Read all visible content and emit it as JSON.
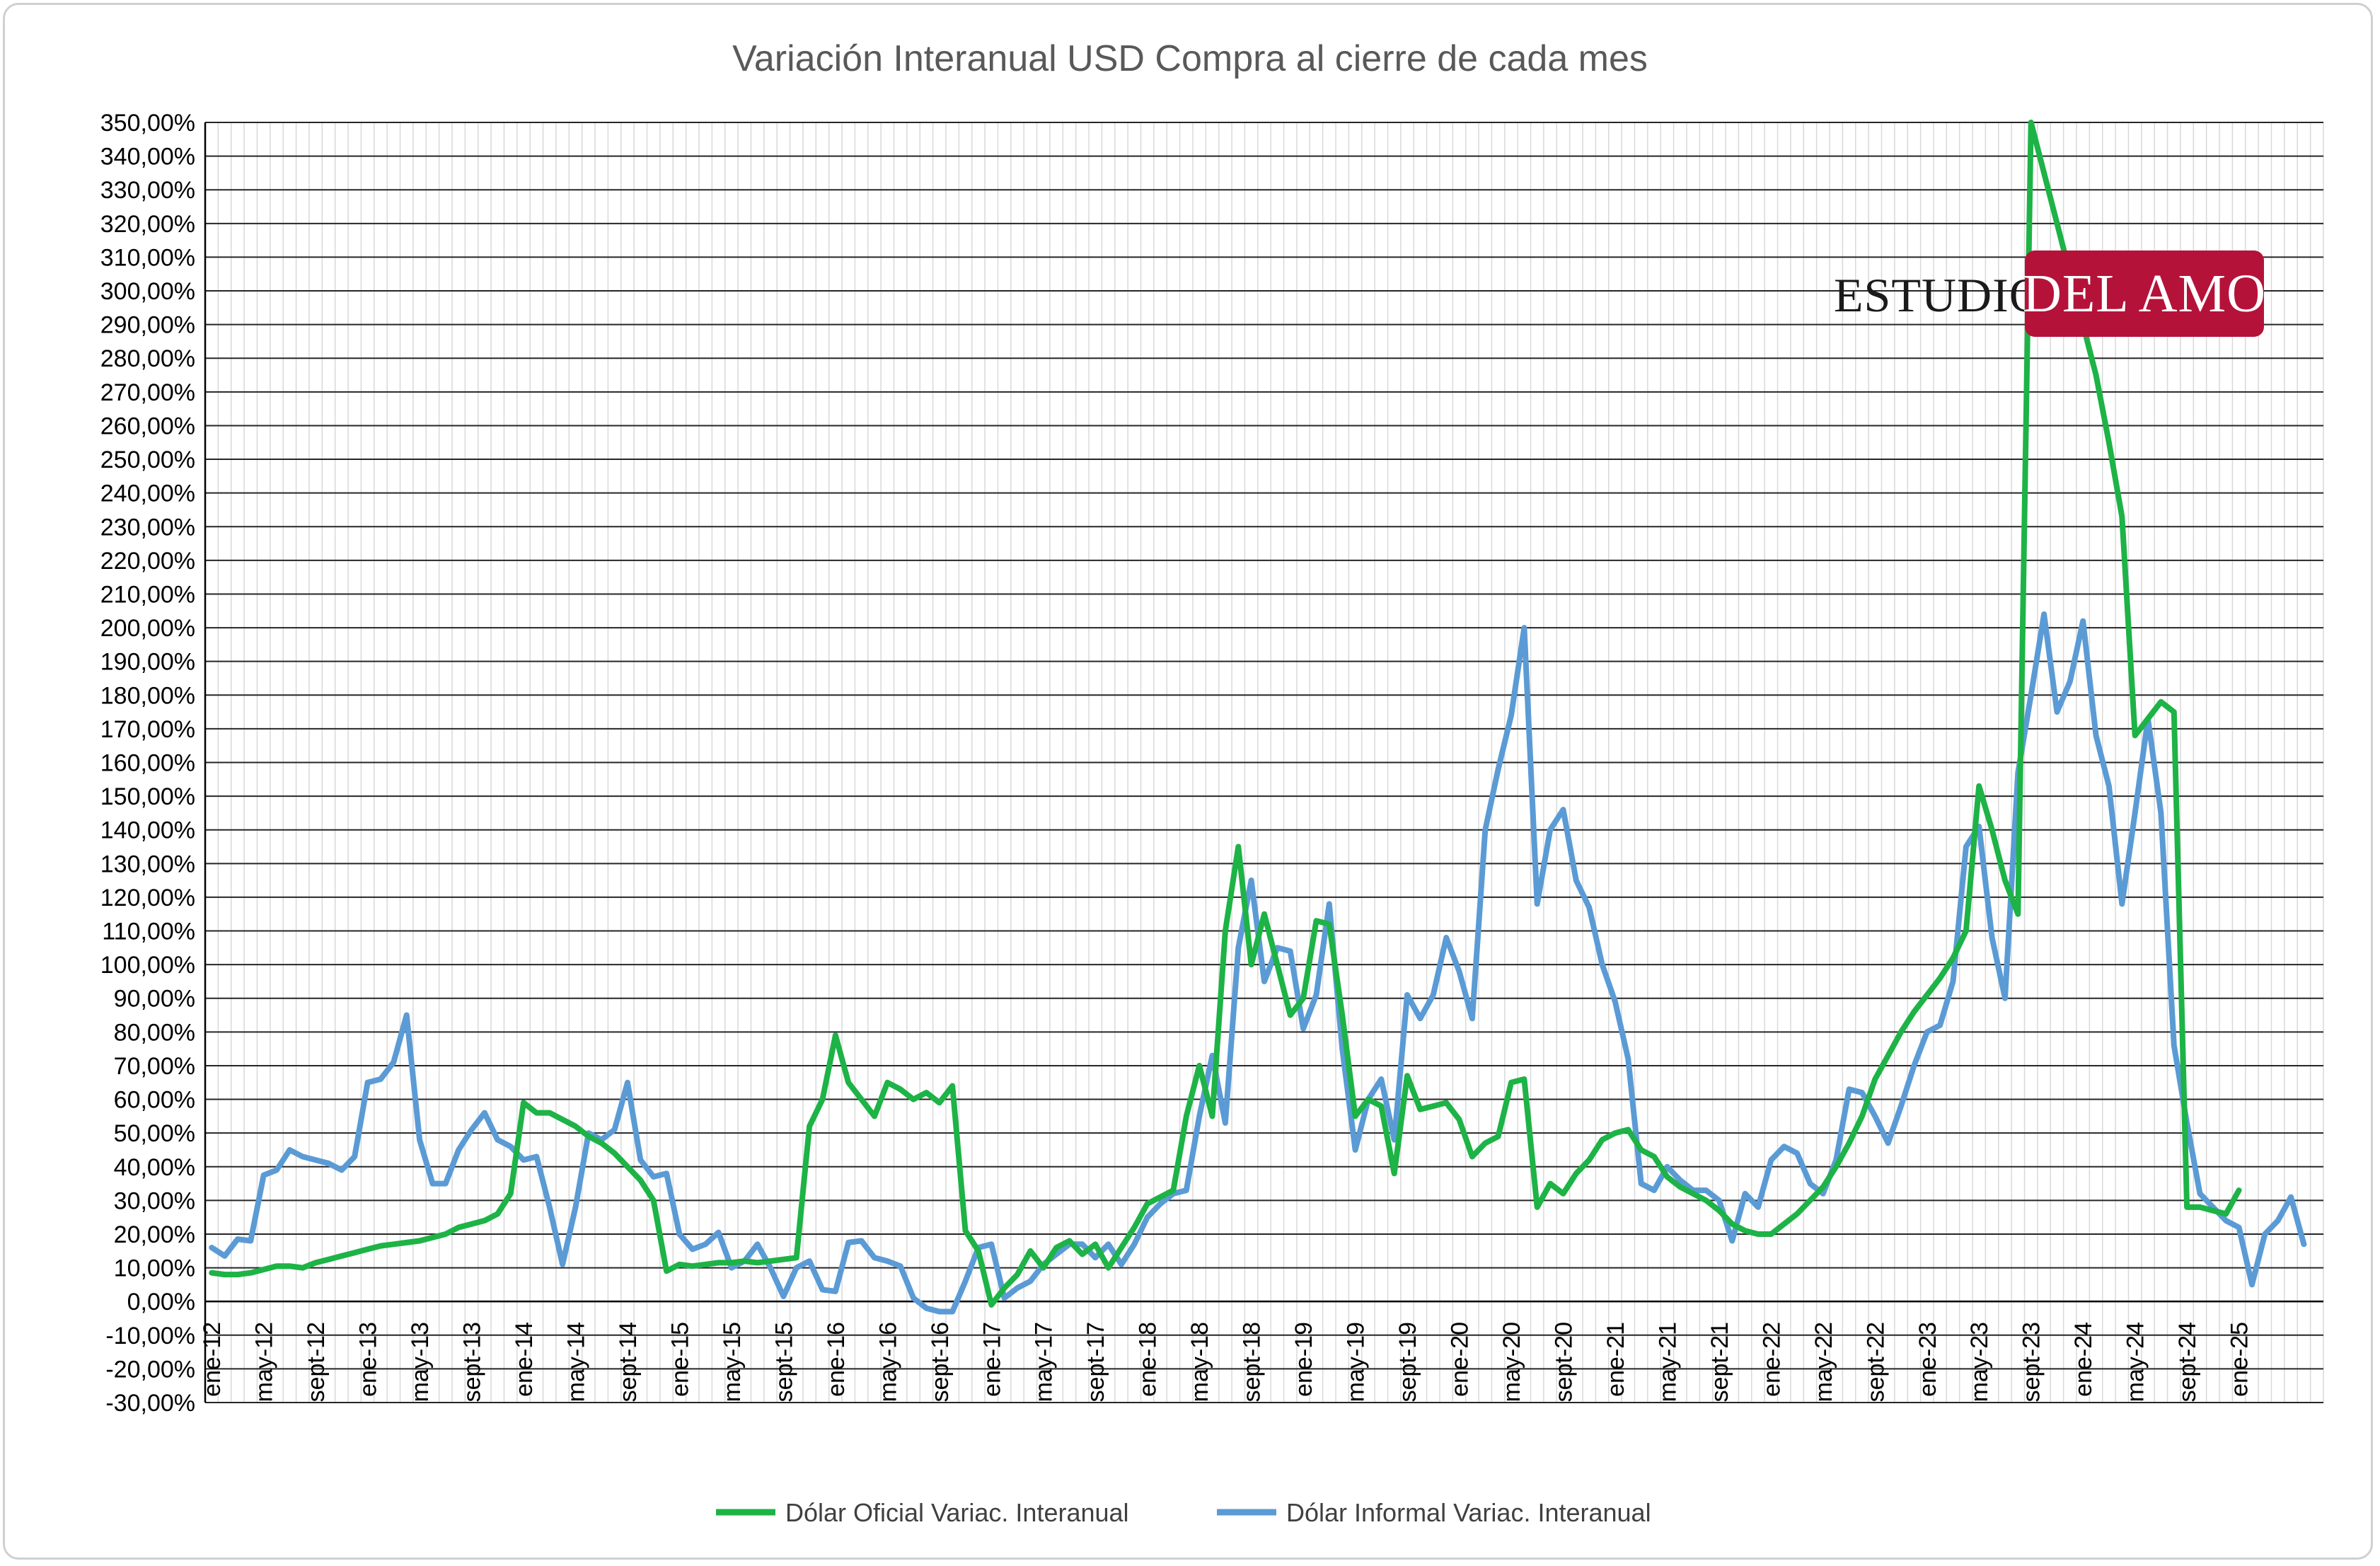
{
  "chart_data": {
    "type": "line",
    "title": "Variación Interanual USD Compra al cierre de cada mes",
    "xlabel": "",
    "ylabel": "",
    "ylim": [
      -30,
      350
    ],
    "ytick_step": 10,
    "yticks": [
      "350,00%",
      "340,00%",
      "330,00%",
      "320,00%",
      "310,00%",
      "300,00%",
      "290,00%",
      "280,00%",
      "270,00%",
      "260,00%",
      "250,00%",
      "240,00%",
      "230,00%",
      "220,00%",
      "210,00%",
      "200,00%",
      "190,00%",
      "180,00%",
      "170,00%",
      "160,00%",
      "150,00%",
      "140,00%",
      "130,00%",
      "120,00%",
      "110,00%",
      "100,00%",
      "90,00%",
      "80,00%",
      "70,00%",
      "60,00%",
      "50,00%",
      "40,00%",
      "30,00%",
      "20,00%",
      "10,00%",
      "0,00%",
      "-10,00%",
      "-20,00%",
      "-30,00%"
    ],
    "x_start": "ene-12",
    "n_months": 163,
    "xtick_every": 4,
    "xticks": [
      "ene-12",
      "may-12",
      "sept-12",
      "ene-13",
      "may-13",
      "sept-13",
      "ene-14",
      "may-14",
      "sept-14",
      "ene-15",
      "may-15",
      "sept-15",
      "ene-16",
      "may-16",
      "sept-16",
      "ene-17",
      "may-17",
      "sept-17",
      "ene-18",
      "may-18",
      "sept-18",
      "ene-19",
      "may-19",
      "sept-19",
      "ene-20",
      "may-20",
      "sept-20",
      "ene-21",
      "may-21",
      "sept-21",
      "ene-22",
      "may-22",
      "sept-22",
      "ene-23",
      "may-23",
      "sept-23",
      "ene-24",
      "may-24",
      "sept-24",
      "ene-25"
    ],
    "grid": true,
    "legend_position": "bottom-center",
    "series": [
      {
        "name": "Dólar Oficial Variac. Interanual",
        "color": "#1db346",
        "values": [
          8.5,
          8,
          8,
          8.5,
          9.5,
          10.5,
          10.5,
          10,
          11.5,
          12.5,
          13.5,
          14.5,
          15.5,
          16.5,
          17,
          17.5,
          18,
          19,
          20,
          22,
          23,
          24,
          26,
          32,
          59,
          56,
          56,
          54,
          52,
          49,
          47,
          44,
          40,
          36,
          30,
          9,
          11,
          10.5,
          11,
          11.5,
          11.5,
          12,
          11.5,
          12,
          12.5,
          13,
          52,
          60,
          79,
          65,
          60,
          55,
          65,
          63,
          60,
          62,
          59,
          64,
          21,
          15,
          -1,
          4,
          8,
          15,
          10,
          16,
          18,
          14,
          17,
          10,
          16,
          22,
          29,
          31,
          33,
          55,
          70,
          55,
          110,
          135,
          100,
          115,
          100,
          85,
          90,
          113,
          112,
          85,
          55,
          60,
          58,
          38,
          67,
          57,
          58,
          59,
          54,
          43,
          47,
          49,
          65,
          66,
          28,
          35,
          32,
          38,
          42,
          48,
          50,
          51,
          45,
          43,
          37,
          34,
          32,
          30,
          27,
          23,
          21,
          20,
          20,
          23,
          26,
          30,
          34,
          40,
          47,
          55,
          66,
          73,
          80,
          86,
          91,
          96,
          102,
          110,
          153,
          140,
          125,
          115,
          350,
          335,
          320,
          305,
          290,
          275,
          255,
          233,
          168,
          173,
          178,
          175,
          28,
          28,
          27,
          26,
          33
        ]
      },
      {
        "name": "Dólar Informal Variac. Interanual",
        "color": "#5b9bd5",
        "values": [
          16,
          13.5,
          18.5,
          18,
          37.5,
          39,
          45,
          43,
          42,
          41,
          39,
          43,
          65,
          66,
          71,
          85,
          48,
          35,
          35,
          45,
          51,
          56,
          48,
          46,
          42,
          43,
          28,
          11,
          28,
          50,
          48,
          51,
          65,
          42,
          37,
          38,
          20,
          15.5,
          17,
          20.5,
          10,
          12,
          17,
          10,
          1.5,
          10,
          12,
          3.5,
          3,
          17.5,
          18,
          13,
          12,
          10.5,
          1,
          -2,
          -3,
          -3,
          6,
          16,
          17,
          1,
          4,
          6,
          11,
          14,
          17,
          17,
          13,
          17,
          11,
          17,
          25,
          29,
          32,
          33,
          55,
          73,
          53,
          105,
          125,
          95,
          105,
          104,
          81,
          91,
          118,
          75,
          45,
          60,
          66,
          48,
          91,
          84,
          91,
          108,
          98,
          84,
          140,
          158,
          174,
          200,
          118,
          140,
          146,
          125,
          117,
          100,
          89,
          72,
          35,
          33,
          40,
          36,
          33,
          33,
          30,
          18,
          32,
          28,
          42,
          46,
          44,
          35,
          32,
          42,
          63,
          62,
          55,
          47,
          58,
          70,
          80,
          82,
          95,
          135,
          141,
          108,
          90,
          157,
          180,
          204,
          175,
          184,
          202,
          168,
          153,
          118,
          145,
          173,
          145,
          76,
          53,
          32,
          28,
          24,
          22,
          5,
          20,
          24,
          31,
          17
        ]
      }
    ]
  },
  "logo": {
    "left_text": "ESTUDIO",
    "right_text": "DEL AMO",
    "badge_color": "#b5123a"
  }
}
